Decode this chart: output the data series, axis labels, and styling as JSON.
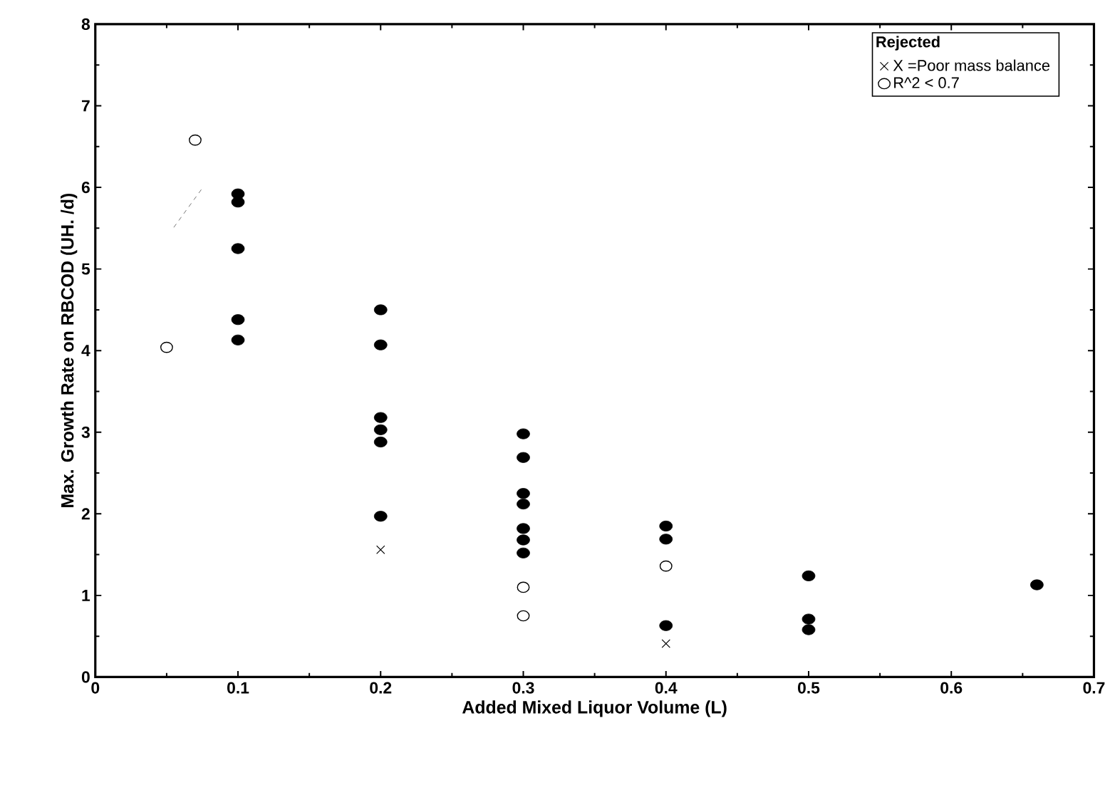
{
  "chart_data": {
    "type": "scatter",
    "xlabel": "Added Mixed Liquor Volume (L)",
    "ylabel": "Max. Growth Rate on RBCOD (UH. /d)",
    "legend_title": "Rejected",
    "xlim": [
      0,
      0.7
    ],
    "xticks": [
      0,
      0.1,
      0.2,
      0.3,
      0.4,
      0.5,
      0.6,
      0.7
    ],
    "ylim": [
      0,
      8
    ],
    "yticks": [
      0,
      1,
      2,
      3,
      4,
      5,
      6,
      7,
      8
    ],
    "legend": "top right",
    "grid": false,
    "series": [
      {
        "color": "#000000",
        "marker": "circle",
        "x": [
          0.1,
          0.1,
          0.1,
          0.1,
          0.1,
          0.2,
          0.2,
          0.2,
          0.2,
          0.2,
          0.2,
          0.3,
          0.3,
          0.3,
          0.3,
          0.3,
          0.3,
          0.3,
          0.4,
          0.4,
          0.4,
          0.5,
          0.5,
          0.5,
          0.66
        ],
        "values": [
          5.92,
          5.82,
          5.25,
          4.38,
          4.13,
          4.5,
          4.07,
          3.18,
          3.03,
          2.88,
          1.97,
          2.98,
          2.69,
          2.25,
          2.12,
          1.82,
          1.68,
          1.52,
          1.85,
          1.69,
          0.63,
          1.24,
          0.71,
          0.58,
          1.13
        ]
      },
      {
        "name": "X =Poor mass balance",
        "color": "#000000",
        "marker": "cross",
        "x": [
          0.2,
          0.4
        ],
        "values": [
          1.56,
          0.41
        ]
      },
      {
        "name": "R^2 < 0.7",
        "color": "#000000",
        "marker": "circle",
        "x": [
          0.07,
          0.05,
          0.3,
          0.3,
          0.4
        ],
        "values": [
          6.58,
          4.04,
          1.1,
          0.75,
          1.36
        ]
      },
      {
        "type": "line",
        "line_style": "dashed",
        "color": "#555555",
        "marker": "none",
        "x": [
          0.055,
          0.075
        ],
        "values": [
          5.51,
          5.99
        ]
      }
    ]
  }
}
